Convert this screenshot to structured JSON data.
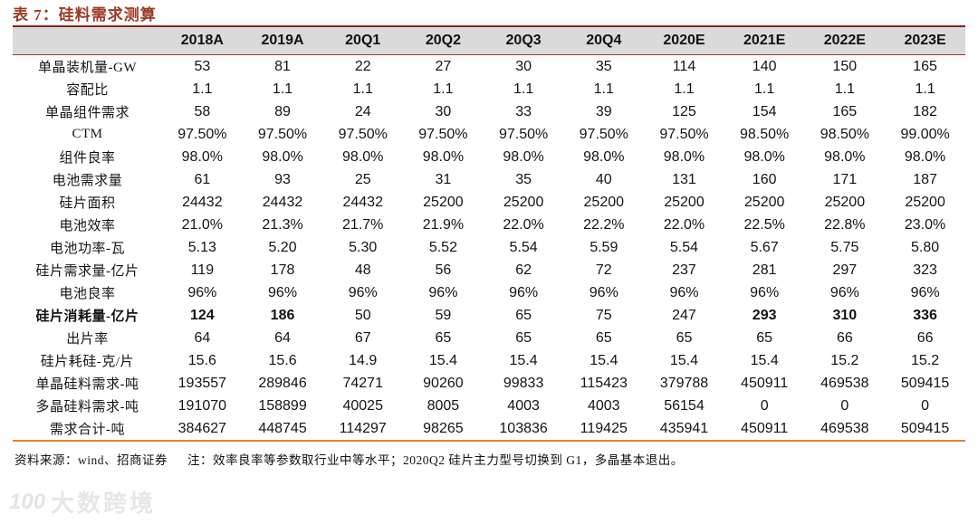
{
  "title": "表 7：硅料需求测算",
  "table": {
    "columns": [
      "",
      "2018A",
      "2019A",
      "20Q1",
      "20Q2",
      "20Q3",
      "20Q4",
      "2020E",
      "2021E",
      "2022E",
      "2023E"
    ],
    "rows": [
      {
        "label": "单晶装机量-GW",
        "values": [
          "53",
          "81",
          "22",
          "27",
          "30",
          "35",
          "114",
          "140",
          "150",
          "165"
        ]
      },
      {
        "label": "容配比",
        "values": [
          "1.1",
          "1.1",
          "1.1",
          "1.1",
          "1.1",
          "1.1",
          "1.1",
          "1.1",
          "1.1",
          "1.1"
        ]
      },
      {
        "label": "单晶组件需求",
        "values": [
          "58",
          "89",
          "24",
          "30",
          "33",
          "39",
          "125",
          "154",
          "165",
          "182"
        ]
      },
      {
        "label": "CTM",
        "values": [
          "97.50%",
          "97.50%",
          "97.50%",
          "97.50%",
          "97.50%",
          "97.50%",
          "97.50%",
          "98.50%",
          "98.50%",
          "99.00%"
        ]
      },
      {
        "label": "组件良率",
        "values": [
          "98.0%",
          "98.0%",
          "98.0%",
          "98.0%",
          "98.0%",
          "98.0%",
          "98.0%",
          "98.0%",
          "98.0%",
          "98.0%"
        ]
      },
      {
        "label": "电池需求量",
        "values": [
          "61",
          "93",
          "25",
          "31",
          "35",
          "40",
          "131",
          "160",
          "171",
          "187"
        ]
      },
      {
        "label": "硅片面积",
        "values": [
          "24432",
          "24432",
          "24432",
          "25200",
          "25200",
          "25200",
          "25200",
          "25200",
          "25200",
          "25200"
        ]
      },
      {
        "label": "电池效率",
        "values": [
          "21.0%",
          "21.3%",
          "21.7%",
          "21.9%",
          "22.0%",
          "22.2%",
          "22.0%",
          "22.5%",
          "22.8%",
          "23.0%"
        ]
      },
      {
        "label": "电池功率-瓦",
        "values": [
          "5.13",
          "5.20",
          "5.30",
          "5.52",
          "5.54",
          "5.59",
          "5.54",
          "5.67",
          "5.75",
          "5.80"
        ]
      },
      {
        "label": "硅片需求量-亿片",
        "values": [
          "119",
          "178",
          "48",
          "56",
          "62",
          "72",
          "237",
          "281",
          "297",
          "323"
        ]
      },
      {
        "label": "电池良率",
        "values": [
          "96%",
          "96%",
          "96%",
          "96%",
          "96%",
          "96%",
          "96%",
          "96%",
          "96%",
          "96%"
        ]
      },
      {
        "label": "硅片消耗量-亿片",
        "label_bold": true,
        "bold_values": [
          0,
          1,
          7,
          8,
          9
        ],
        "values": [
          "124",
          "186",
          "50",
          "59",
          "65",
          "75",
          "247",
          "293",
          "310",
          "336"
        ]
      },
      {
        "label": "出片率",
        "values": [
          "64",
          "64",
          "67",
          "65",
          "65",
          "65",
          "65",
          "65",
          "66",
          "66"
        ]
      },
      {
        "label": "硅片耗硅-克/片",
        "values": [
          "15.6",
          "15.6",
          "14.9",
          "15.4",
          "15.4",
          "15.4",
          "15.4",
          "15.4",
          "15.2",
          "15.2"
        ]
      },
      {
        "label": "单晶硅料需求-吨",
        "values": [
          "193557",
          "289846",
          "74271",
          "90260",
          "99833",
          "115423",
          "379788",
          "450911",
          "469538",
          "509415"
        ]
      },
      {
        "label": "多晶硅料需求-吨",
        "values": [
          "191070",
          "158899",
          "40025",
          "8005",
          "4003",
          "4003",
          "56154",
          "0",
          "0",
          "0"
        ]
      },
      {
        "label": "需求合计-吨",
        "values": [
          "384627",
          "448745",
          "114297",
          "98265",
          "103836",
          "119425",
          "435941",
          "450911",
          "469538",
          "509415"
        ]
      }
    ]
  },
  "footer": {
    "source": "资料来源：wind、招商证券",
    "note": "注：效率良率等参数取行业中等水平；2020Q2 硅片主力型号切换到 G1，多晶基本退出。"
  },
  "watermark": {
    "mark": "100",
    "text": "大数跨境"
  },
  "colors": {
    "title": "#9c3a23",
    "rule_top": "#8f2420",
    "header_bg": "#dadada",
    "header_rule": "#9a3b2e",
    "rule_bottom": "#e0832f"
  }
}
